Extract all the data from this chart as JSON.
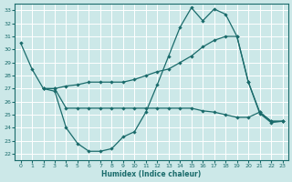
{
  "background_color": "#cce8e8",
  "grid_color": "#b8d8d8",
  "line_color": "#1a6b6b",
  "xlabel": "Humidex (Indice chaleur)",
  "xlim": [
    -0.5,
    23.5
  ],
  "ylim": [
    21.5,
    33.5
  ],
  "yticks": [
    22,
    23,
    24,
    25,
    26,
    27,
    28,
    29,
    30,
    31,
    32,
    33
  ],
  "xticks": [
    0,
    1,
    2,
    3,
    4,
    5,
    6,
    7,
    8,
    9,
    10,
    11,
    12,
    13,
    14,
    15,
    16,
    17,
    18,
    19,
    20,
    21,
    22,
    23
  ],
  "line1_x": [
    0,
    1,
    2,
    3,
    4,
    5,
    6,
    7,
    8,
    9,
    10,
    11,
    12,
    13,
    14,
    15,
    16,
    17,
    18,
    19,
    20,
    21,
    22,
    23
  ],
  "line1_y": [
    30.5,
    28.5,
    27.0,
    26.8,
    24.0,
    22.8,
    22.2,
    22.2,
    22.4,
    23.3,
    23.7,
    25.2,
    27.3,
    29.5,
    31.7,
    33.2,
    32.2,
    33.1,
    32.7,
    31.0,
    27.5,
    25.1,
    24.4,
    24.5
  ],
  "line2_x": [
    2,
    3,
    4,
    5,
    6,
    7,
    8,
    9,
    10,
    11,
    12,
    13,
    14,
    15,
    16,
    17,
    18,
    19,
    20,
    21,
    22,
    23
  ],
  "line2_y": [
    27.0,
    27.0,
    27.2,
    27.3,
    27.5,
    27.5,
    27.5,
    27.5,
    27.7,
    28.0,
    28.3,
    28.5,
    29.0,
    29.5,
    30.2,
    30.7,
    31.0,
    31.0,
    27.5,
    25.2,
    24.5,
    24.5
  ],
  "line3_x": [
    2,
    3,
    4,
    5,
    6,
    7,
    8,
    9,
    10,
    11,
    12,
    13,
    14,
    15,
    16,
    17,
    18,
    19,
    20,
    21,
    22,
    23
  ],
  "line3_y": [
    27.0,
    27.0,
    25.5,
    25.5,
    25.5,
    25.5,
    25.5,
    25.5,
    25.5,
    25.5,
    25.5,
    25.5,
    25.5,
    25.5,
    25.3,
    25.2,
    25.0,
    24.8,
    24.8,
    25.2,
    24.5,
    24.5
  ]
}
